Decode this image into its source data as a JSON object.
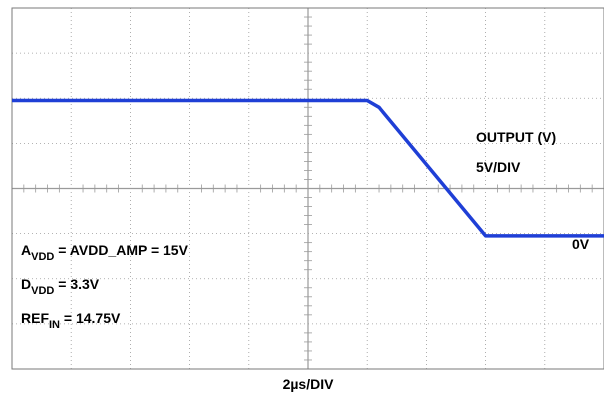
{
  "chart_data": {
    "type": "line",
    "x_divisions": 10,
    "y_divisions": 8,
    "xlabel": "2µs/DIV",
    "series": [
      {
        "color": "#1f3fd6",
        "x": [
          0,
          6,
          6.2,
          8,
          10
        ],
        "y": [
          1.95,
          1.95,
          1.8,
          -1.05,
          -1.05
        ]
      }
    ],
    "annotations": {
      "output": "OUTPUT (V)",
      "scale": "5V/DIV",
      "zero": "0V",
      "avdd_main": "A",
      "avdd_sub": "VDD",
      "avdd_rest": " = AVDD_AMP = 15V",
      "dvdd_main": "D",
      "dvdd_sub": "VDD",
      "dvdd_rest": " = 3.3V",
      "ref_main": "REF",
      "ref_sub": "IN",
      "ref_rest": " = 14.75V"
    },
    "grid": true,
    "colors": {
      "trace": "#1f3fd6",
      "grid": "#9a9a9a",
      "frame": "#7a7a7a"
    }
  }
}
